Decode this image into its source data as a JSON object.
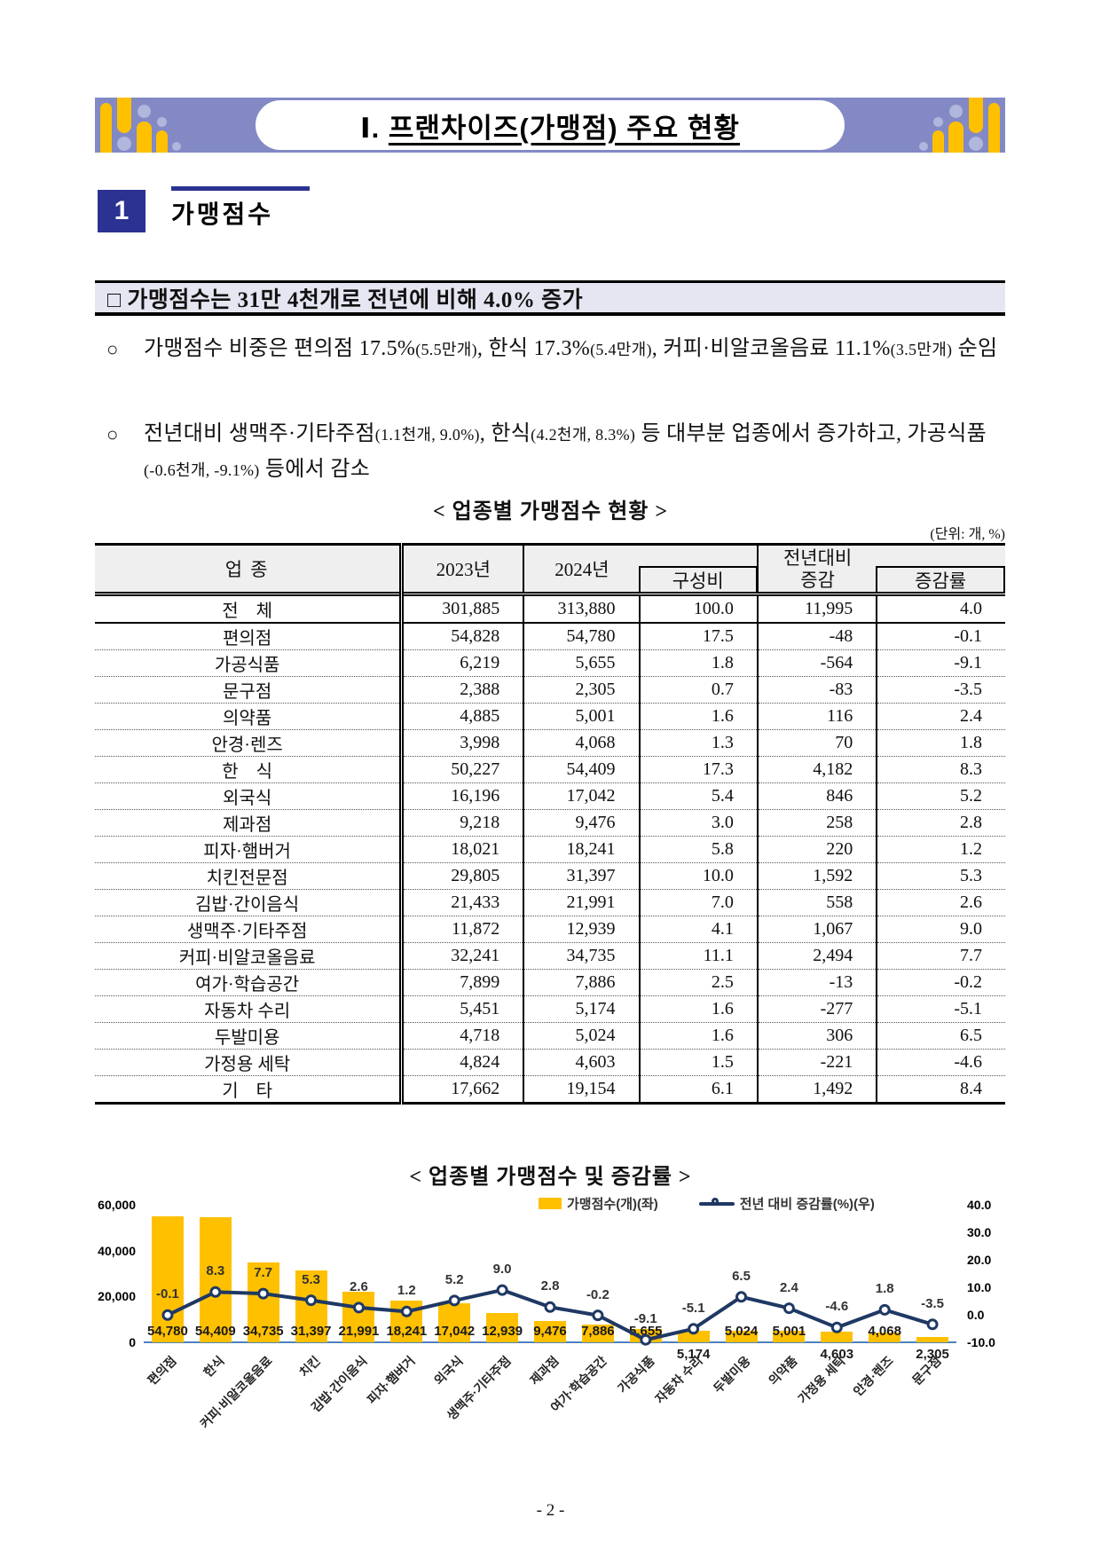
{
  "banner": {
    "title_prefix": "Ⅰ.",
    "title_main": "프랜차이즈(가맹점) 주요 현황"
  },
  "section": {
    "number": "1",
    "title": "가맹점수"
  },
  "headline": {
    "text": "□ 가맹점수는 31만 4천개로 전년에 비해 4.0% 증가"
  },
  "bullets": [
    {
      "marker": "○",
      "segments": [
        {
          "t": "가맹점수 비중은 편의점 17.5%",
          "s": false
        },
        {
          "t": "(5.5만개)",
          "s": true
        },
        {
          "t": ", 한식 17.3%",
          "s": false
        },
        {
          "t": "(5.4만개)",
          "s": true
        },
        {
          "t": ", 커피·비알코올음료 11.1%",
          "s": false
        },
        {
          "t": "(3.5만개)",
          "s": true
        },
        {
          "t": " 순임",
          "s": false
        }
      ]
    },
    {
      "marker": "○",
      "segments": [
        {
          "t": "전년대비 생맥주·기타주점",
          "s": false
        },
        {
          "t": "(1.1천개, 9.0%)",
          "s": true
        },
        {
          "t": ", 한식",
          "s": false
        },
        {
          "t": "(4.2천개, 8.3%)",
          "s": true
        },
        {
          "t": " 등 대부분 업종에서 증가하고, 가공식품",
          "s": false
        },
        {
          "t": "(-0.6천개, -9.1%)",
          "s": true
        },
        {
          "t": " 등에서 감소",
          "s": false
        }
      ]
    }
  ],
  "table": {
    "title": "< 업종별 가맹점수 현황 >",
    "unit": "(단위: 개, %)",
    "headers": {
      "col_category": "업  종",
      "col_2023": "2023년",
      "col_2024": "2024년",
      "col_share": "구성비",
      "col_change_line1": "전년대비",
      "col_change_line2": "증감",
      "col_rate": "증감률"
    },
    "rows": [
      {
        "category": "전　체",
        "y2023": "301,885",
        "y2024": "313,880",
        "share": "100.0",
        "change": "11,995",
        "rate": "4.0"
      },
      {
        "category": "편의점",
        "y2023": "54,828",
        "y2024": "54,780",
        "share": "17.5",
        "change": "-48",
        "rate": "-0.1"
      },
      {
        "category": "가공식품",
        "y2023": "6,219",
        "y2024": "5,655",
        "share": "1.8",
        "change": "-564",
        "rate": "-9.1"
      },
      {
        "category": "문구점",
        "y2023": "2,388",
        "y2024": "2,305",
        "share": "0.7",
        "change": "-83",
        "rate": "-3.5"
      },
      {
        "category": "의약품",
        "y2023": "4,885",
        "y2024": "5,001",
        "share": "1.6",
        "change": "116",
        "rate": "2.4"
      },
      {
        "category": "안경·렌즈",
        "y2023": "3,998",
        "y2024": "4,068",
        "share": "1.3",
        "change": "70",
        "rate": "1.8"
      },
      {
        "category": "한　식",
        "y2023": "50,227",
        "y2024": "54,409",
        "share": "17.3",
        "change": "4,182",
        "rate": "8.3"
      },
      {
        "category": "외국식",
        "y2023": "16,196",
        "y2024": "17,042",
        "share": "5.4",
        "change": "846",
        "rate": "5.2"
      },
      {
        "category": "제과점",
        "y2023": "9,218",
        "y2024": "9,476",
        "share": "3.0",
        "change": "258",
        "rate": "2.8"
      },
      {
        "category": "피자·햄버거",
        "y2023": "18,021",
        "y2024": "18,241",
        "share": "5.8",
        "change": "220",
        "rate": "1.2"
      },
      {
        "category": "치킨전문점",
        "y2023": "29,805",
        "y2024": "31,397",
        "share": "10.0",
        "change": "1,592",
        "rate": "5.3"
      },
      {
        "category": "김밥·간이음식",
        "y2023": "21,433",
        "y2024": "21,991",
        "share": "7.0",
        "change": "558",
        "rate": "2.6"
      },
      {
        "category": "생맥주·기타주점",
        "y2023": "11,872",
        "y2024": "12,939",
        "share": "4.1",
        "change": "1,067",
        "rate": "9.0"
      },
      {
        "category": "커피·비알코올음료",
        "y2023": "32,241",
        "y2024": "34,735",
        "share": "11.1",
        "change": "2,494",
        "rate": "7.7"
      },
      {
        "category": "여가·학습공간",
        "y2023": "7,899",
        "y2024": "7,886",
        "share": "2.5",
        "change": "-13",
        "rate": "-0.2"
      },
      {
        "category": "자동차 수리",
        "y2023": "5,451",
        "y2024": "5,174",
        "share": "1.6",
        "change": "-277",
        "rate": "-5.1"
      },
      {
        "category": "두발미용",
        "y2023": "4,718",
        "y2024": "5,024",
        "share": "1.6",
        "change": "306",
        "rate": "6.5"
      },
      {
        "category": "가정용 세탁",
        "y2023": "4,824",
        "y2024": "4,603",
        "share": "1.5",
        "change": "-221",
        "rate": "-4.6"
      },
      {
        "category": "기　타",
        "y2023": "17,662",
        "y2024": "19,154",
        "share": "6.1",
        "change": "1,492",
        "rate": "8.4"
      }
    ]
  },
  "chart_data": {
    "type": "bar+line",
    "title": "< 업종별 가맹점수 및 증감률 >",
    "legend": [
      {
        "label": "가맹점수(개)(좌)",
        "type": "bar",
        "color": "#FFC000"
      },
      {
        "label": "전년 대비 증감률(%)(우)",
        "type": "line",
        "color": "#1F3864"
      }
    ],
    "categories": [
      "편의점",
      "한식",
      "커피·비알코올음료",
      "치킨",
      "김밥·간이음식",
      "피자·햄버거",
      "외국식",
      "생맥주·기타주점",
      "제과점",
      "여가·학습공간",
      "가공식품",
      "자동차 수리",
      "두발미용",
      "의약품",
      "가정용 세탁",
      "안경·렌즈",
      "문구점"
    ],
    "series": [
      {
        "name": "가맹점수(개)",
        "type": "bar",
        "axis": "left",
        "values": [
          54780,
          54409,
          34735,
          31397,
          21991,
          18241,
          17042,
          12939,
          9476,
          7886,
          5655,
          5174,
          5024,
          5001,
          4603,
          4068,
          2305
        ],
        "labels": [
          "54,780",
          "54,409",
          "34,735",
          "31,397",
          "21,991",
          "18,241",
          "17,042",
          "12,939",
          "9,476",
          "7,886",
          "5,655",
          "5,174",
          "5,024",
          "5,001",
          "4,603",
          "4,068",
          "2,305"
        ],
        "label_below_axis": [
          false,
          false,
          false,
          false,
          false,
          false,
          false,
          false,
          false,
          false,
          false,
          true,
          false,
          false,
          true,
          false,
          true
        ]
      },
      {
        "name": "전년 대비 증감률(%)",
        "type": "line",
        "axis": "right",
        "values": [
          -0.1,
          8.3,
          7.7,
          5.3,
          2.6,
          1.2,
          5.2,
          9.0,
          2.8,
          -0.2,
          -9.1,
          -5.1,
          6.5,
          2.4,
          -4.6,
          1.8,
          -3.5
        ],
        "labels": [
          "-0.1",
          "8.3",
          "7.7",
          "5.3",
          "2.6",
          "1.2",
          "5.2",
          "9.0",
          "2.8",
          "-0.2",
          "-9.1",
          "-5.1",
          "6.5",
          "2.4",
          "-4.6",
          "1.8",
          "-3.5"
        ]
      }
    ],
    "left_axis": {
      "min": 0,
      "max": 60000,
      "ticks": [
        "60,000",
        "40,000",
        "20,000",
        "0"
      ],
      "tick_values": [
        60000,
        40000,
        20000,
        0
      ]
    },
    "right_axis": {
      "min": -10,
      "max": 40,
      "ticks": [
        "40.0",
        "30.0",
        "20.0",
        "10.0",
        "0.0",
        "-10.0"
      ],
      "tick_values": [
        40,
        30,
        20,
        10,
        0,
        -10
      ]
    },
    "colors": {
      "bar": "#FFC000",
      "line": "#1F3864",
      "axis_line": "#4E81BD"
    },
    "grid": false,
    "legend_position": "top"
  },
  "footer": {
    "page": "- 2 -"
  }
}
